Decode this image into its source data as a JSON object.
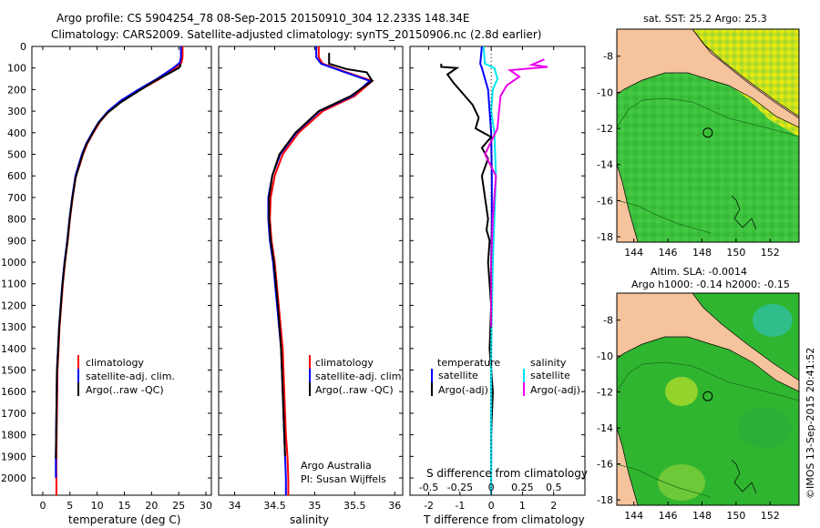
{
  "header": {
    "line1": "Argo profile: CS 5904254_78 08-Sep-2015 20150910_304 12.233S 148.34E",
    "line2": "Climatology: CARS2009. Satellite-adjusted climatology: synTS_20150906.nc (2.8d earlier)"
  },
  "colors": {
    "climatology": "#ff0000",
    "satellite": "#0000ff",
    "argo": "#000000",
    "sat_salinity": "#00e5ee",
    "argo_salinity": "#ee00ee",
    "land": "#f5c39c",
    "ocean": "#33bb33"
  },
  "chart_data": [
    {
      "type": "line",
      "id": "temperature",
      "xlabel": "temperature (deg C)",
      "ylabel": "",
      "xlim": [
        -2,
        31
      ],
      "ylim": [
        0,
        2080
      ],
      "y_inverted": true,
      "xticks": [
        0,
        5,
        10,
        15,
        20,
        25,
        30
      ],
      "yticks": [
        0,
        100,
        200,
        300,
        400,
        500,
        600,
        700,
        800,
        900,
        1000,
        1100,
        1200,
        1300,
        1400,
        1500,
        1600,
        1700,
        1800,
        1900,
        2000
      ],
      "legend": [
        {
          "label": "climatology",
          "color": "#ff0000"
        },
        {
          "label": "satellite-adj. clim.",
          "color": "#0000ff"
        },
        {
          "label": "Argo(..raw -QC)",
          "color": "#000000"
        }
      ],
      "series": [
        {
          "name": "climatology",
          "color": "#ff0000",
          "x": [
            25.7,
            25.7,
            25.5,
            24.4,
            21.5,
            18.0,
            14.8,
            12.2,
            10.5,
            9.3,
            8.2,
            7.4,
            6.8,
            6.1,
            5.5,
            5.0,
            4.6,
            4.1,
            3.7,
            3.4,
            3.1,
            2.9,
            2.7,
            2.6,
            2.5,
            2.5
          ],
          "y": [
            0,
            50,
            75,
            100,
            150,
            200,
            250,
            300,
            350,
            400,
            450,
            500,
            550,
            600,
            700,
            800,
            900,
            1000,
            1100,
            1200,
            1300,
            1400,
            1500,
            1700,
            1900,
            2080
          ]
        },
        {
          "name": "satellite-adj. clim.",
          "color": "#0000ff",
          "x": [
            25.4,
            25.4,
            25.2,
            24.0,
            21.0,
            17.6,
            14.4,
            12.0,
            10.3,
            9.1,
            8.0,
            7.2,
            6.6,
            6.0,
            5.4,
            4.9,
            4.5,
            4.0,
            3.6,
            3.3,
            3.0,
            2.8,
            2.6,
            2.5,
            2.4,
            2.4
          ],
          "y": [
            0,
            50,
            75,
            100,
            150,
            200,
            250,
            300,
            350,
            400,
            450,
            500,
            550,
            600,
            700,
            800,
            900,
            1000,
            1100,
            1200,
            1300,
            1400,
            1500,
            1700,
            1900,
            2000
          ]
        },
        {
          "name": "Argo",
          "color": "#000000",
          "x": [
            25.3,
            25.3,
            25.0,
            23.6,
            20.6,
            17.4,
            14.3,
            11.8,
            10.1,
            9.0,
            7.9,
            7.2,
            6.6,
            6.0,
            5.4,
            4.9,
            4.5,
            4.0,
            3.6,
            3.3,
            3.0,
            2.8,
            2.6,
            2.5,
            2.4
          ],
          "y": [
            80,
            90,
            100,
            120,
            160,
            210,
            260,
            310,
            360,
            410,
            460,
            510,
            560,
            610,
            710,
            810,
            910,
            1010,
            1110,
            1210,
            1310,
            1410,
            1510,
            1710,
            1910
          ]
        }
      ]
    },
    {
      "type": "line",
      "id": "salinity",
      "xlabel": "salinity",
      "xlim": [
        33.8,
        36.1
      ],
      "ylim": [
        0,
        2080
      ],
      "y_inverted": true,
      "xticks": [
        34,
        34.5,
        35,
        35.5,
        36
      ],
      "legend": [
        {
          "label": "climatology",
          "color": "#ff0000"
        },
        {
          "label": "satellite-adj. clim.",
          "color": "#0000ff"
        },
        {
          "label": "Argo(..raw -QC)",
          "color": "#000000"
        }
      ],
      "annotation_line1": "Argo Australia",
      "annotation_line2": "PI: Susan Wijffels",
      "series": [
        {
          "name": "climatology",
          "color": "#ff0000",
          "x": [
            35.05,
            35.05,
            35.1,
            35.4,
            35.72,
            35.5,
            35.1,
            34.8,
            34.6,
            34.5,
            34.45,
            34.44,
            34.46,
            34.5,
            34.55,
            34.6,
            34.62,
            34.64,
            34.66,
            34.67,
            34.67
          ],
          "y": [
            0,
            50,
            80,
            120,
            160,
            230,
            300,
            400,
            500,
            600,
            700,
            800,
            900,
            1000,
            1200,
            1400,
            1600,
            1800,
            1900,
            2000,
            2080
          ]
        },
        {
          "name": "satellite-adj. clim.",
          "color": "#0000ff",
          "x": [
            35.02,
            35.02,
            35.08,
            35.38,
            35.69,
            35.47,
            35.06,
            34.77,
            34.57,
            34.47,
            34.42,
            34.42,
            34.44,
            34.48,
            34.53,
            34.58,
            34.6,
            34.62,
            34.63,
            34.64,
            34.64
          ],
          "y": [
            0,
            50,
            80,
            120,
            160,
            230,
            300,
            400,
            500,
            600,
            700,
            800,
            900,
            1000,
            1200,
            1400,
            1600,
            1800,
            1900,
            2000,
            2080
          ]
        },
        {
          "name": "Argo",
          "color": "#000000",
          "x": [
            35.18,
            35.18,
            35.4,
            35.65,
            35.72,
            35.45,
            35.05,
            34.76,
            34.56,
            34.47,
            34.43,
            34.43,
            34.45,
            34.49,
            34.54,
            34.58,
            34.6,
            34.62,
            34.63
          ],
          "y": [
            30,
            80,
            105,
            120,
            160,
            230,
            300,
            400,
            500,
            600,
            700,
            800,
            900,
            1000,
            1200,
            1400,
            1600,
            1800,
            1900
          ]
        }
      ]
    },
    {
      "type": "line",
      "id": "difference",
      "xlabel_top": "S difference from climatology",
      "xlabel": "T difference from climatology",
      "xlim": [
        -2.6,
        3.0
      ],
      "ylim": [
        0,
        2080
      ],
      "y_inverted": true,
      "xticks_T": [
        -2,
        -1,
        0,
        1,
        2
      ],
      "xticks_S_labels": [
        "-0.5",
        "-0.25",
        "0",
        "0.25",
        "0.5"
      ],
      "xticks_S_positions_T": [
        -2,
        -1,
        0,
        1,
        2
      ],
      "legend_left_title": "temperature",
      "legend_right_title": "salinity",
      "legend": [
        {
          "label": "satellite",
          "color": "#0000ff"
        },
        {
          "label": "Argo(-adj)",
          "color": "#000000"
        },
        {
          "label": "satellite",
          "color": "#00e5ee"
        },
        {
          "label": "Argo(-adj)",
          "color": "#ee00ee"
        }
      ],
      "series": [
        {
          "name": "T satellite",
          "color": "#0000ff",
          "x": [
            -0.3,
            -0.35,
            -0.3,
            -0.2,
            -0.1,
            -0.05,
            0.0,
            0.02,
            0.02,
            0.0,
            0.0,
            0.0,
            0.0
          ],
          "y": [
            0,
            80,
            100,
            150,
            200,
            300,
            400,
            600,
            800,
            1000,
            1400,
            1800,
            2080
          ]
        },
        {
          "name": "T Argo",
          "color": "#000000",
          "x": [
            -1.6,
            -1.6,
            -1.1,
            -1.4,
            -1.2,
            -0.9,
            -0.6,
            -0.4,
            -0.5,
            0.0,
            -0.3,
            -0.1,
            -0.3,
            -0.2,
            -0.1,
            -0.15,
            -0.05,
            -0.1,
            0.0,
            -0.05,
            0.05,
            0.0,
            0.0
          ],
          "y": [
            80,
            95,
            100,
            130,
            170,
            220,
            270,
            330,
            380,
            420,
            470,
            520,
            600,
            700,
            800,
            850,
            900,
            1000,
            1200,
            1400,
            1600,
            1800,
            1910
          ]
        },
        {
          "name": "S satellite",
          "color": "#00e5ee",
          "x": [
            -0.25,
            -0.2,
            0.1,
            0.2,
            0.05,
            0.0,
            0.1,
            0.15,
            0.1,
            0.05,
            0.0,
            0.0,
            0.0
          ],
          "y": [
            0,
            80,
            100,
            150,
            200,
            300,
            400,
            600,
            800,
            1000,
            1400,
            1800,
            2080
          ]
        },
        {
          "name": "S Argo",
          "color": "#ee00ee",
          "x": [
            1.7,
            1.3,
            1.8,
            0.6,
            0.9,
            0.5,
            0.3,
            0.25,
            0.2,
            -0.2,
            0.15,
            0.1,
            0.05,
            0.0,
            0.0
          ],
          "y": [
            60,
            85,
            95,
            110,
            140,
            180,
            230,
            300,
            380,
            500,
            600,
            700,
            800,
            1000,
            1300
          ]
        }
      ]
    },
    {
      "type": "heatmap",
      "id": "sst_map",
      "title": "sat. SST: 25.2 Argo: 25.3",
      "xticks": [
        144,
        146,
        148,
        150,
        152
      ],
      "yticks": [
        -8,
        -10,
        -12,
        -14,
        -16,
        -18
      ],
      "xlim": [
        143,
        153.7
      ],
      "ylim": [
        -18.3,
        -6.5
      ],
      "profile_location": {
        "lon": 148.34,
        "lat": -12.233
      }
    },
    {
      "type": "heatmap",
      "id": "sla_map",
      "title_line1": "Altim. SLA: -0.0014",
      "title_line2": "Argo h1000: -0.14 h2000: -0.15",
      "xticks": [
        144,
        146,
        148,
        150,
        152
      ],
      "yticks": [
        -8,
        -10,
        -12,
        -14,
        -16,
        -18
      ],
      "xlim": [
        143,
        153.7
      ],
      "ylim": [
        -18.3,
        -6.5
      ],
      "profile_location": {
        "lon": 148.34,
        "lat": -12.233
      }
    }
  ],
  "footer": {
    "credit": "©IMOS 13-Sep-2015 20:41:52"
  }
}
